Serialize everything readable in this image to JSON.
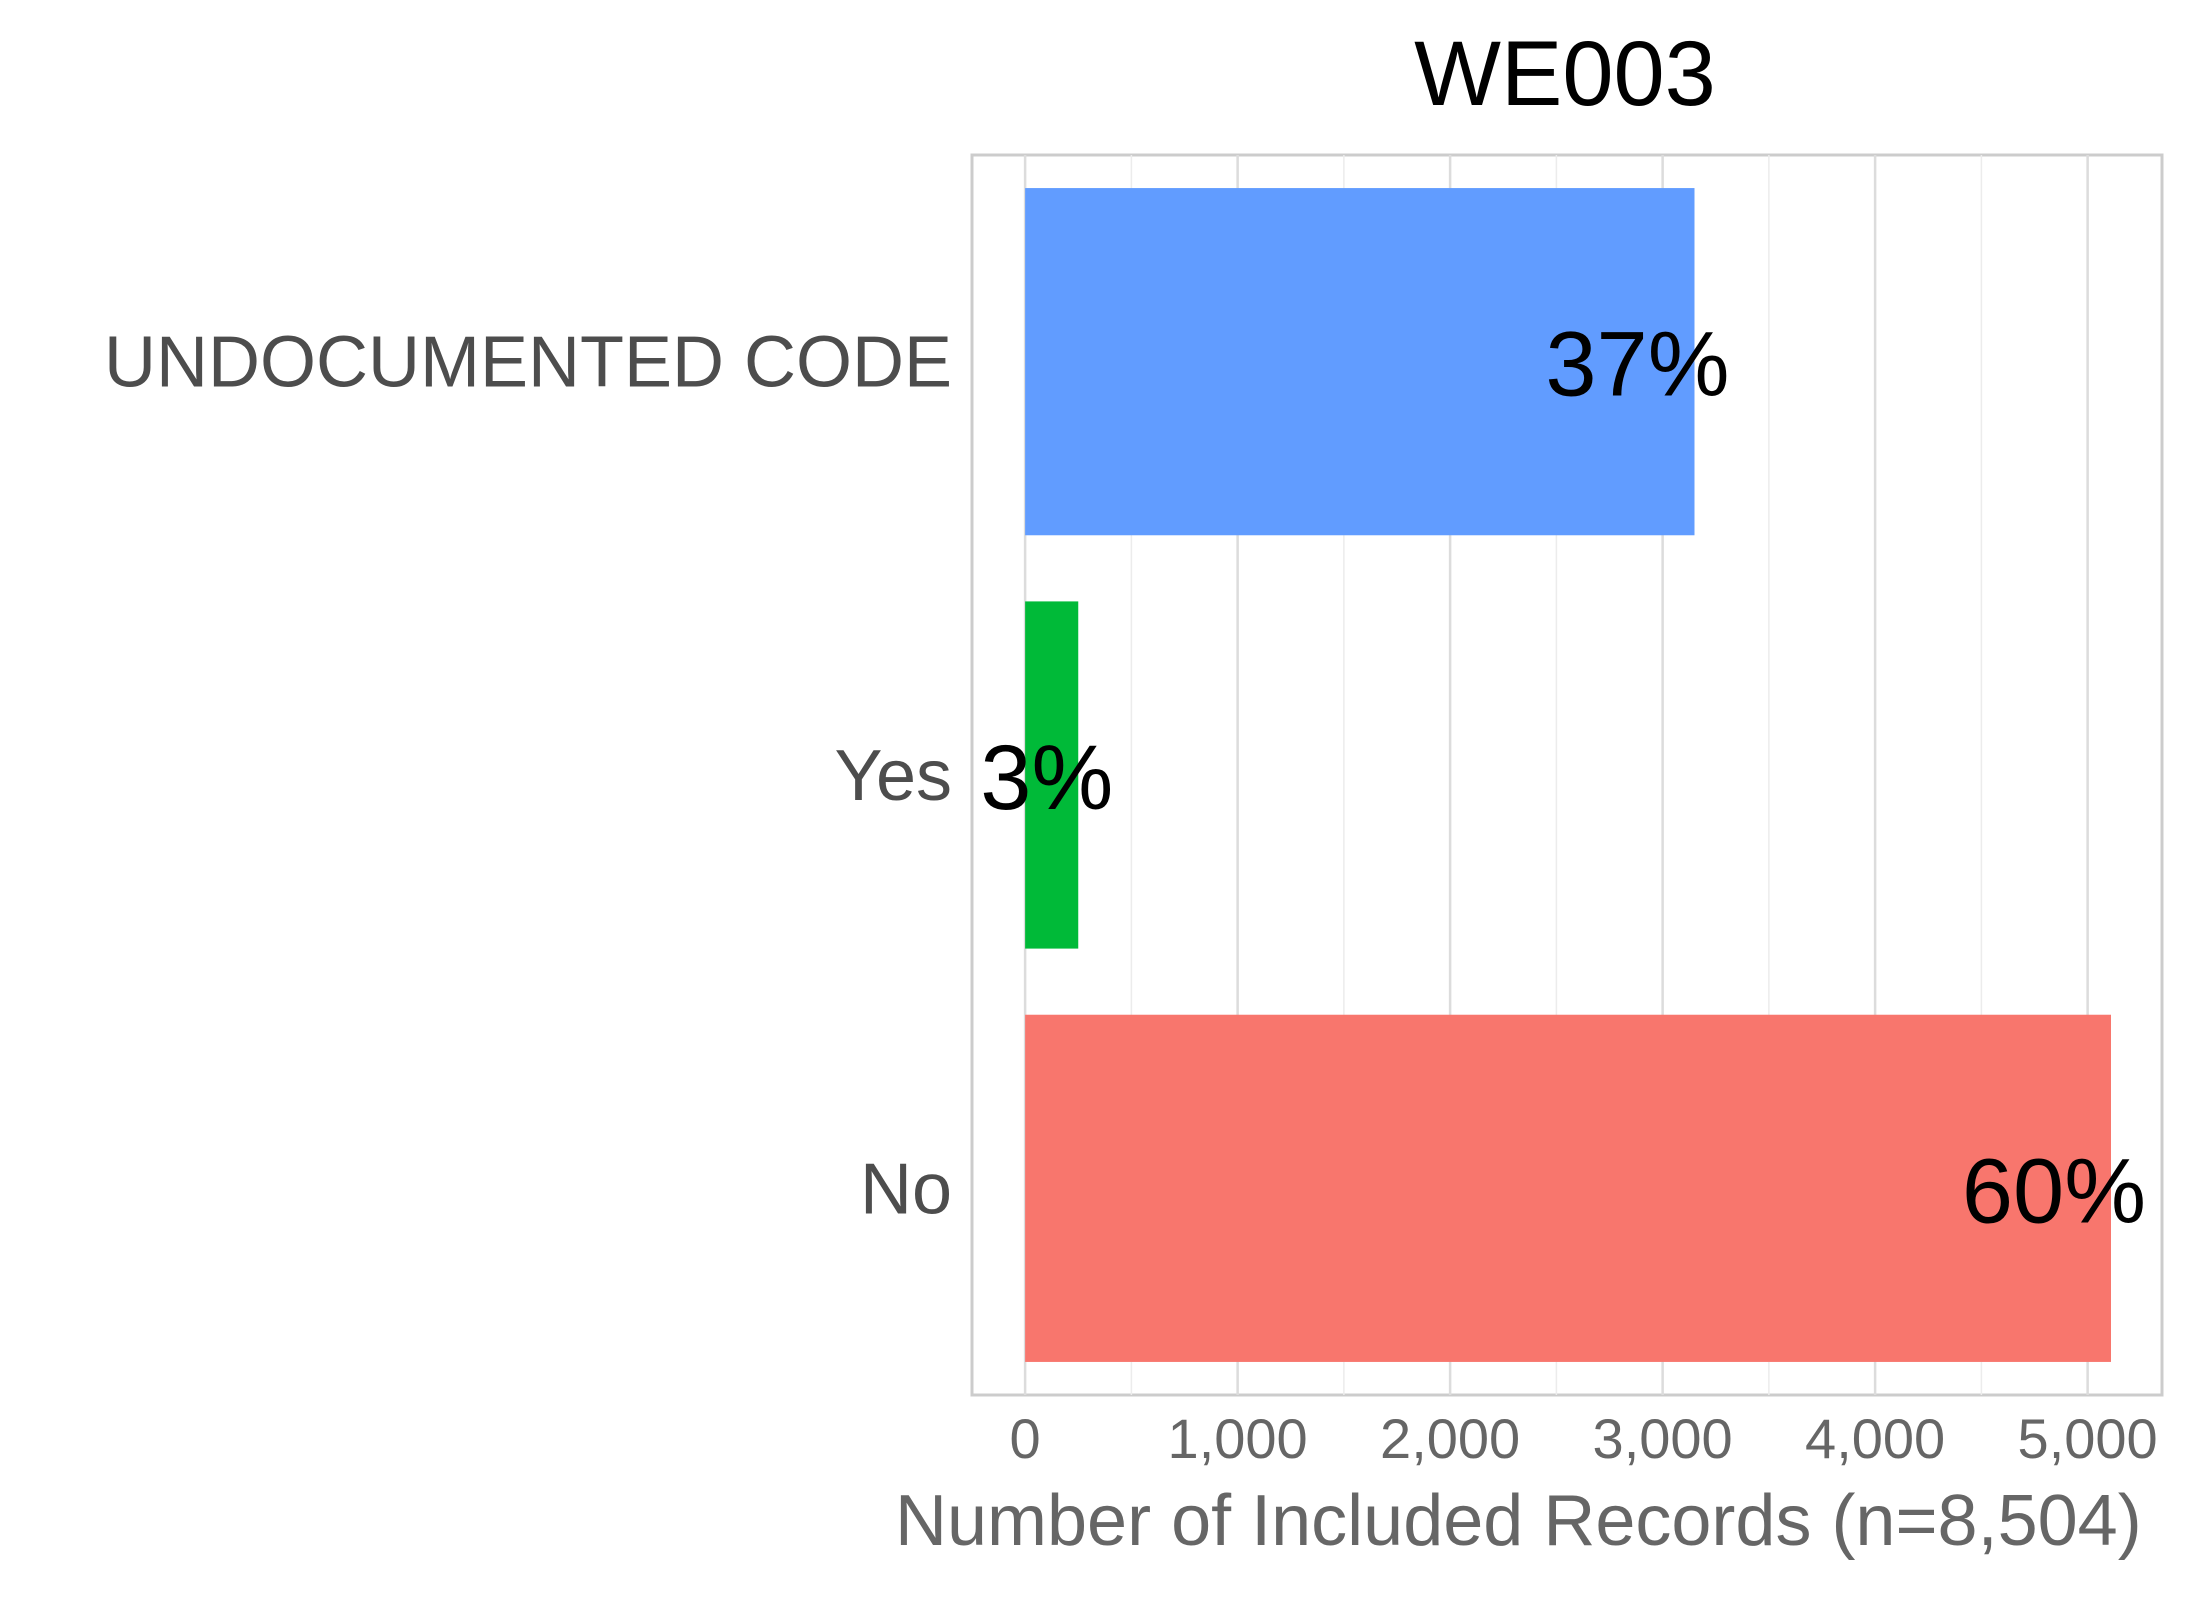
{
  "chart_data": {
    "type": "bar",
    "orientation": "horizontal",
    "title": "WE003",
    "xlabel": "Number of Included Records (n=8,504)",
    "ylabel": "",
    "categories": [
      "UNDOCUMENTED CODE",
      "Yes",
      "No"
    ],
    "values": [
      3150,
      250,
      5110
    ],
    "data_labels": [
      "37%",
      "3%",
      "60%"
    ],
    "colors": [
      "#619CFF",
      "#00BA38",
      "#F8766D"
    ],
    "xlim": [
      -250,
      5350
    ],
    "x_ticks": [
      0,
      1000,
      2000,
      3000,
      4000,
      5000
    ],
    "x_tick_labels": [
      "0",
      "1,000",
      "2,000",
      "3,000",
      "4,000",
      "5,000"
    ],
    "grid": true,
    "legend": "none"
  }
}
